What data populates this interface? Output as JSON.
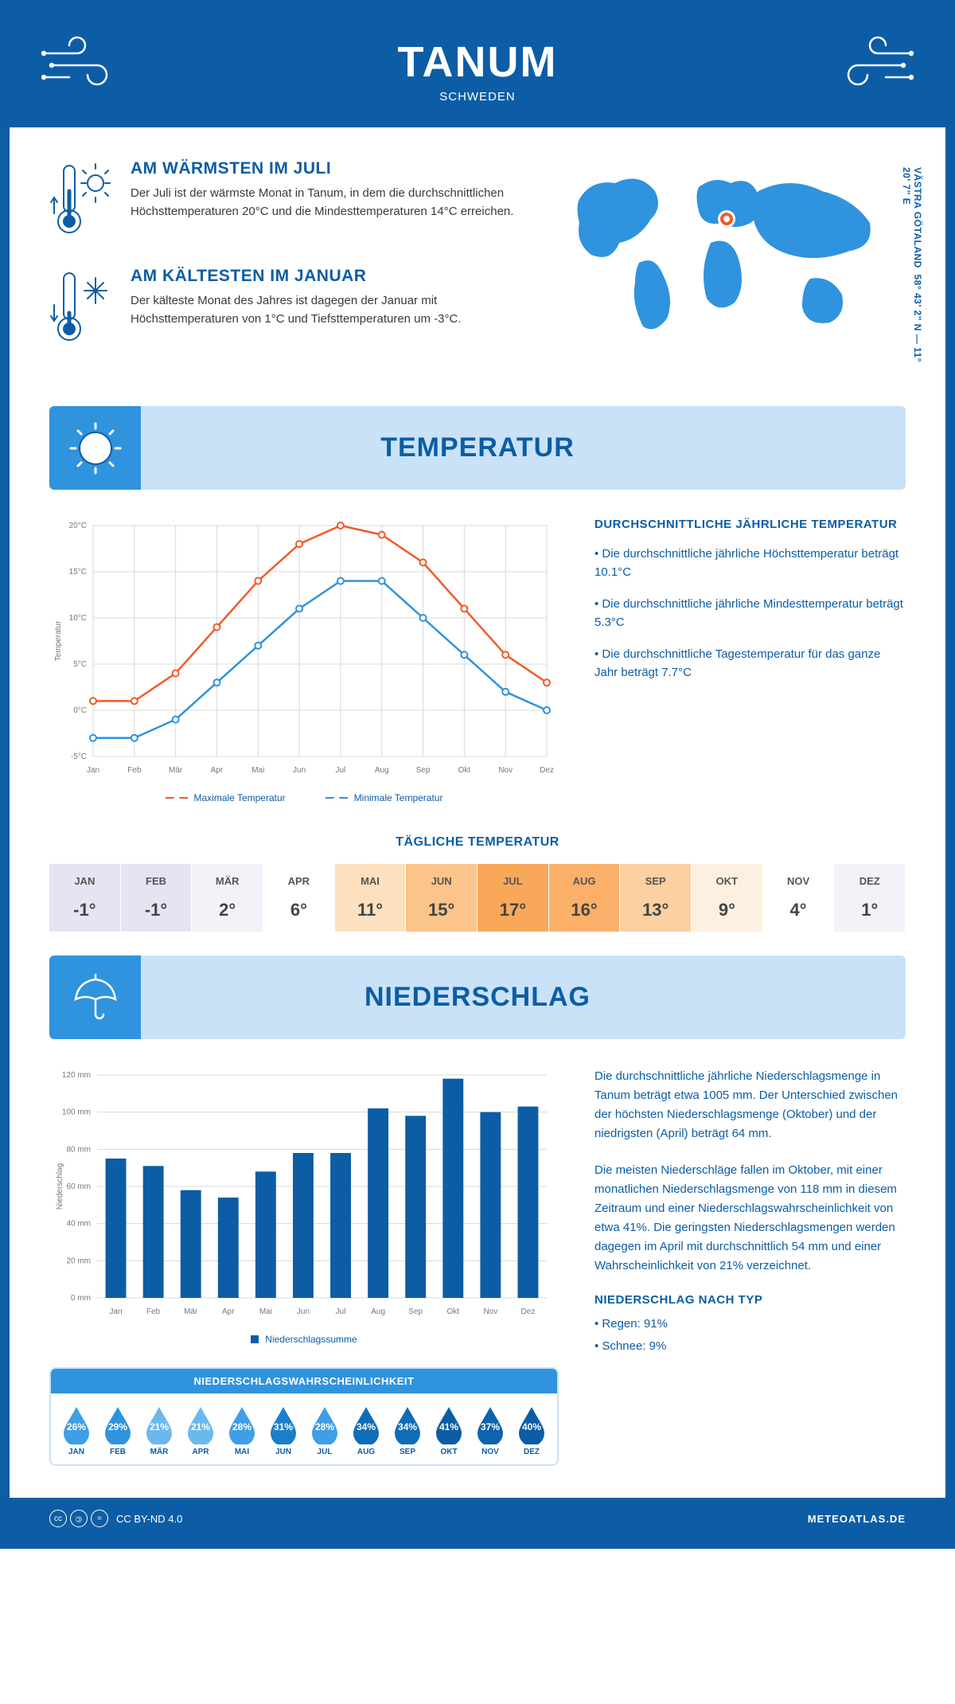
{
  "header": {
    "title": "TANUM",
    "subtitle": "SCHWEDEN"
  },
  "coords": "58° 43' 2\" N — 11° 20' 7\" E",
  "region": "VÄSTRA GÖTALAND",
  "warm": {
    "title": "AM WÄRMSTEN IM JULI",
    "text": "Der Juli ist der wärmste Monat in Tanum, in dem die durchschnittlichen Höchsttemperaturen 20°C und die Mindesttemperaturen 14°C erreichen."
  },
  "cold": {
    "title": "AM KÄLTESTEN IM JANUAR",
    "text": "Der kälteste Monat des Jahres ist dagegen der Januar mit Höchsttemperaturen von 1°C und Tiefsttemperaturen um -3°C."
  },
  "section_temp": "TEMPERATUR",
  "section_precip": "NIEDERSCHLAG",
  "annual": {
    "title": "DURCHSCHNITTLICHE JÄHRLICHE TEMPERATUR",
    "p1": "• Die durchschnittliche jährliche Höchsttemperatur beträgt 10.1°C",
    "p2": "• Die durchschnittliche jährliche Mindesttemperatur beträgt 5.3°C",
    "p3": "• Die durchschnittliche Tagestemperatur für das ganze Jahr beträgt 7.7°C"
  },
  "temp_chart": {
    "months": [
      "Jan",
      "Feb",
      "Mär",
      "Apr",
      "Mai",
      "Jun",
      "Jul",
      "Aug",
      "Sep",
      "Okt",
      "Nov",
      "Dez"
    ],
    "max": [
      1,
      1,
      4,
      9,
      14,
      18,
      20,
      19,
      16,
      11,
      6,
      3
    ],
    "min": [
      -3,
      -3,
      -1,
      3,
      7,
      11,
      14,
      14,
      10,
      6,
      2,
      0
    ],
    "ylim": [
      -5,
      20
    ],
    "yticks": [
      -5,
      0,
      5,
      10,
      15,
      20
    ],
    "ytick_labels": [
      "-5°C",
      "0°C",
      "5°C",
      "10°C",
      "15°C",
      "20°C"
    ],
    "max_color": "#f15a29",
    "min_color": "#2f93de",
    "grid_color": "#d8d8d8",
    "bg": "#ffffff",
    "y_title": "Temperatur",
    "leg_max": "Maximale Temperatur",
    "leg_min": "Minimale Temperatur"
  },
  "daily": {
    "title": "TÄGLICHE TEMPERATUR",
    "months": [
      "JAN",
      "FEB",
      "MÄR",
      "APR",
      "MAI",
      "JUN",
      "JUL",
      "AUG",
      "SEP",
      "OKT",
      "NOV",
      "DEZ"
    ],
    "values": [
      "-1°",
      "-1°",
      "2°",
      "6°",
      "11°",
      "15°",
      "17°",
      "16°",
      "13°",
      "9°",
      "4°",
      "1°"
    ],
    "colors": [
      "#e6e4f2",
      "#e6e4f2",
      "#f3f2f9",
      "#ffffff",
      "#fde1bf",
      "#fbc48a",
      "#f9a85a",
      "#fab068",
      "#fcd0a0",
      "#fef0e0",
      "#ffffff",
      "#f3f2f9"
    ]
  },
  "precip": {
    "months": [
      "Jan",
      "Feb",
      "Mär",
      "Apr",
      "Mai",
      "Jun",
      "Jul",
      "Aug",
      "Sep",
      "Okt",
      "Nov",
      "Dez"
    ],
    "values": [
      75,
      71,
      58,
      54,
      68,
      78,
      78,
      102,
      98,
      118,
      100,
      103
    ],
    "ylim": [
      0,
      120
    ],
    "yticks": [
      0,
      20,
      40,
      60,
      80,
      100,
      120
    ],
    "ytick_labels": [
      "0 mm",
      "20 mm",
      "40 mm",
      "60 mm",
      "80 mm",
      "100 mm",
      "120 mm"
    ],
    "bar_color": "#0c5da5",
    "grid_color": "#d8d8d8",
    "y_title": "Niederschlag",
    "legend": "Niederschlagssumme",
    "text1": "Die durchschnittliche jährliche Niederschlagsmenge in Tanum beträgt etwa 1005 mm. Der Unterschied zwischen der höchsten Niederschlagsmenge (Oktober) und der niedrigsten (April) beträgt 64 mm.",
    "text2": "Die meisten Niederschläge fallen im Oktober, mit einer monatlichen Niederschlagsmenge von 118 mm in diesem Zeitraum und einer Niederschlagswahrscheinlichkeit von etwa 41%. Die geringsten Niederschlagsmengen werden dagegen im April mit durchschnittlich 54 mm und einer Wahrscheinlichkeit von 21% verzeichnet.",
    "type_title": "NIEDERSCHLAG NACH TYP",
    "type1": "• Regen: 91%",
    "type2": "• Schnee: 9%"
  },
  "prob": {
    "title": "NIEDERSCHLAGSWAHRSCHEINLICHKEIT",
    "months": [
      "JAN",
      "FEB",
      "MÄR",
      "APR",
      "MAI",
      "JUN",
      "JUL",
      "AUG",
      "SEP",
      "OKT",
      "NOV",
      "DEZ"
    ],
    "values": [
      "26%",
      "29%",
      "21%",
      "21%",
      "28%",
      "31%",
      "28%",
      "34%",
      "34%",
      "41%",
      "37%",
      "40%"
    ],
    "colors": [
      "#3f9ee5",
      "#2f93de",
      "#6bb8ec",
      "#6bb8ec",
      "#3f9ee5",
      "#1c7fc9",
      "#3f9ee5",
      "#0f6cb6",
      "#0f6cb6",
      "#0c5da5",
      "#0d63ad",
      "#0c5da5"
    ]
  },
  "footer": {
    "license": "CC BY-ND 4.0",
    "site": "METEOATLAS.DE"
  }
}
